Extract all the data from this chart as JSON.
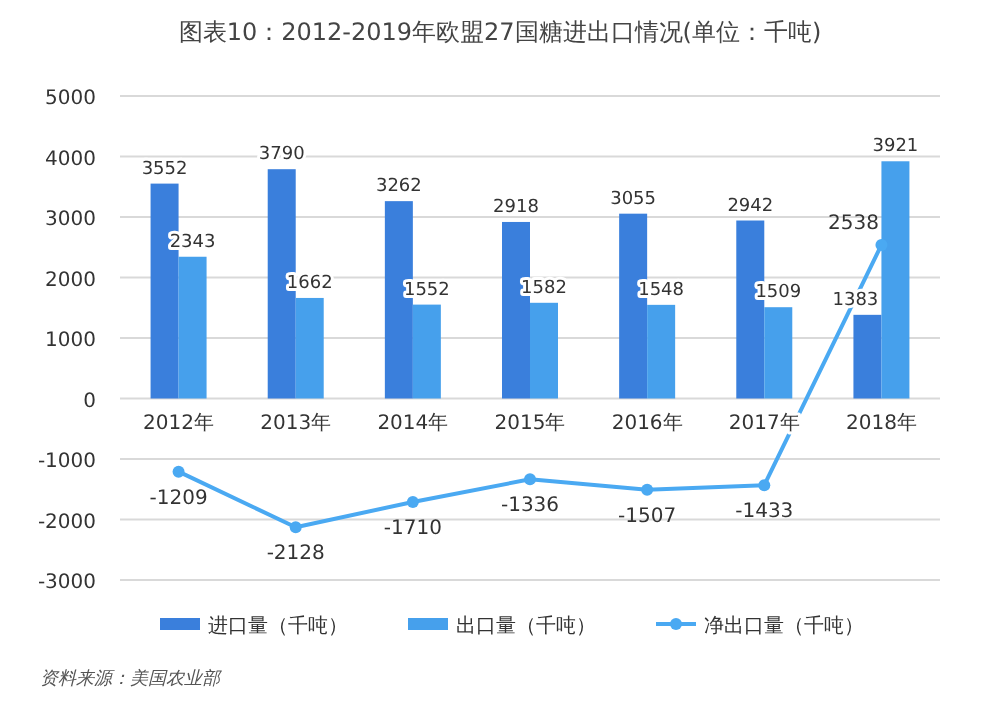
{
  "chart_data": {
    "type": "bar",
    "title": "图表10：2012-2019年欧盟27国糖进出口情况(单位：千吨)",
    "categories": [
      "2012年",
      "2013年",
      "2014年",
      "2015年",
      "2016年",
      "2017年",
      "2018年"
    ],
    "series": [
      {
        "name": "进口量（千吨）",
        "color": "#3a7fdc",
        "values": [
          3552,
          3790,
          3262,
          2918,
          3055,
          2942,
          1383
        ]
      },
      {
        "name": "出口量（千吨）",
        "color": "#46a0ec",
        "values": [
          2343,
          1662,
          1552,
          1582,
          1548,
          1509,
          3921
        ]
      },
      {
        "name": "净出口量（千吨）",
        "type": "line",
        "color": "#4aa9f2",
        "values": [
          -1209,
          -2128,
          -1710,
          -1336,
          -1507,
          -1433,
          2538
        ]
      }
    ],
    "ylim": [
      -3000,
      5000
    ],
    "yticks": [
      -3000,
      -2000,
      -1000,
      0,
      1000,
      2000,
      3000,
      4000,
      5000
    ],
    "grid": "y",
    "data_labels": true,
    "legend": "bottom",
    "marker": "circle",
    "annotations": [
      "资料来源：美国农业部"
    ]
  }
}
